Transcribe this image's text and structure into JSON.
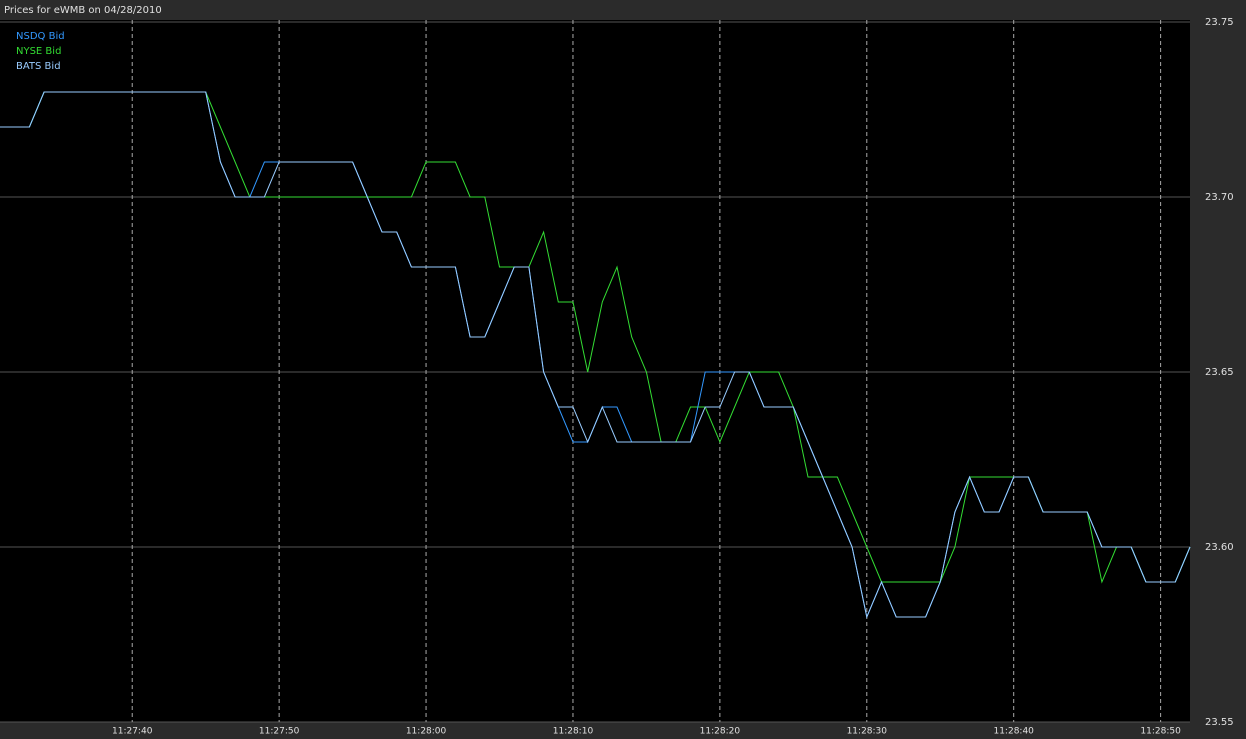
{
  "chart_data": {
    "type": "line",
    "title": "Prices for  eWMB  on  04/28/2010",
    "x": [
      "11:27:31",
      "11:27:32",
      "11:27:33",
      "11:27:34",
      "11:27:35",
      "11:27:36",
      "11:27:37",
      "11:27:38",
      "11:27:39",
      "11:27:40",
      "11:27:41",
      "11:27:42",
      "11:27:43",
      "11:27:44",
      "11:27:45",
      "11:27:46",
      "11:27:47",
      "11:27:48",
      "11:27:49",
      "11:27:50",
      "11:27:51",
      "11:27:52",
      "11:27:53",
      "11:27:54",
      "11:27:55",
      "11:27:56",
      "11:27:57",
      "11:27:58",
      "11:27:59",
      "11:28:00",
      "11:28:01",
      "11:28:02",
      "11:28:03",
      "11:28:04",
      "11:28:05",
      "11:28:06",
      "11:28:07",
      "11:28:08",
      "11:28:09",
      "11:28:10",
      "11:28:11",
      "11:28:12",
      "11:28:13",
      "11:28:14",
      "11:28:15",
      "11:28:16",
      "11:28:17",
      "11:28:18",
      "11:28:19",
      "11:28:20",
      "11:28:21",
      "11:28:22",
      "11:28:23",
      "11:28:24",
      "11:28:25",
      "11:28:26",
      "11:28:27",
      "11:28:28",
      "11:28:29",
      "11:28:30",
      "11:28:31",
      "11:28:32",
      "11:28:33",
      "11:28:34",
      "11:28:35",
      "11:28:36",
      "11:28:37",
      "11:28:38",
      "11:28:39",
      "11:28:40",
      "11:28:41",
      "11:28:42",
      "11:28:43",
      "11:28:44",
      "11:28:45",
      "11:28:46",
      "11:28:47",
      "11:28:48",
      "11:28:49",
      "11:28:50",
      "11:28:51",
      "11:28:52"
    ],
    "series": [
      {
        "name": "NSDQ Bid",
        "color": "#3399ff",
        "values": [
          23.72,
          23.72,
          23.72,
          23.73,
          23.73,
          23.73,
          23.73,
          23.73,
          23.73,
          23.73,
          23.73,
          23.73,
          23.73,
          23.73,
          23.73,
          23.71,
          23.7,
          23.7,
          23.71,
          23.71,
          23.71,
          23.71,
          23.71,
          23.71,
          23.71,
          23.7,
          23.69,
          23.69,
          23.68,
          23.68,
          23.68,
          23.68,
          23.66,
          23.66,
          23.67,
          23.68,
          23.68,
          23.65,
          23.64,
          23.63,
          23.63,
          23.64,
          23.64,
          23.63,
          23.63,
          23.63,
          23.63,
          23.63,
          23.65,
          23.65,
          23.65,
          23.65,
          23.64,
          23.64,
          23.64,
          23.63,
          23.62,
          23.61,
          23.6,
          23.58,
          23.59,
          23.58,
          23.58,
          23.58,
          23.59,
          23.61,
          23.62,
          23.61,
          23.61,
          23.62,
          23.62,
          23.61,
          23.61,
          23.61,
          23.61,
          23.6,
          23.6,
          23.6,
          23.59,
          23.59,
          23.59,
          23.6
        ]
      },
      {
        "name": "NYSE Bid",
        "color": "#33dd33",
        "values": [
          23.72,
          23.72,
          23.72,
          23.73,
          23.73,
          23.73,
          23.73,
          23.73,
          23.73,
          23.73,
          23.73,
          23.73,
          23.73,
          23.73,
          23.73,
          23.72,
          23.71,
          23.7,
          23.7,
          23.7,
          23.7,
          23.7,
          23.7,
          23.7,
          23.7,
          23.7,
          23.7,
          23.7,
          23.7,
          23.71,
          23.71,
          23.71,
          23.7,
          23.7,
          23.68,
          23.68,
          23.68,
          23.69,
          23.67,
          23.67,
          23.65,
          23.67,
          23.68,
          23.66,
          23.65,
          23.63,
          23.63,
          23.64,
          23.64,
          23.63,
          23.64,
          23.65,
          23.65,
          23.65,
          23.64,
          23.62,
          23.62,
          23.62,
          23.61,
          23.6,
          23.59,
          23.59,
          23.59,
          23.59,
          23.59,
          23.6,
          23.62,
          23.62,
          23.62,
          23.62,
          23.62,
          23.61,
          23.61,
          23.61,
          23.61,
          23.59,
          23.6,
          23.6,
          23.59,
          23.59,
          23.59,
          23.6
        ]
      },
      {
        "name": "BATS Bid",
        "color": "#99ccff",
        "values": [
          23.72,
          23.72,
          23.72,
          23.73,
          23.73,
          23.73,
          23.73,
          23.73,
          23.73,
          23.73,
          23.73,
          23.73,
          23.73,
          23.73,
          23.73,
          23.71,
          23.7,
          23.7,
          23.7,
          23.71,
          23.71,
          23.71,
          23.71,
          23.71,
          23.71,
          23.7,
          23.69,
          23.69,
          23.68,
          23.68,
          23.68,
          23.68,
          23.66,
          23.66,
          23.67,
          23.68,
          23.68,
          23.65,
          23.64,
          23.64,
          23.63,
          23.64,
          23.63,
          23.63,
          23.63,
          23.63,
          23.63,
          23.63,
          23.64,
          23.64,
          23.65,
          23.65,
          23.64,
          23.64,
          23.64,
          23.63,
          23.62,
          23.61,
          23.6,
          23.58,
          23.59,
          23.58,
          23.58,
          23.58,
          23.59,
          23.61,
          23.62,
          23.61,
          23.61,
          23.62,
          23.62,
          23.61,
          23.61,
          23.61,
          23.61,
          23.6,
          23.6,
          23.6,
          23.59,
          23.59,
          23.59,
          23.6
        ]
      }
    ],
    "xlim": [
      "11:27:31",
      "11:28:52"
    ],
    "xticks": [
      "11:27:40",
      "11:27:50",
      "11:28:00",
      "11:28:10",
      "11:28:20",
      "11:28:30",
      "11:28:40",
      "11:28:50"
    ],
    "ylim": [
      23.55,
      23.75
    ],
    "yticks": [
      23.55,
      {
        "value": 23.6,
        "label": "23.60"
      },
      23.65,
      {
        "value": 23.7,
        "label": "23.70"
      },
      23.75
    ],
    "grid": true,
    "legend": "top-left"
  }
}
